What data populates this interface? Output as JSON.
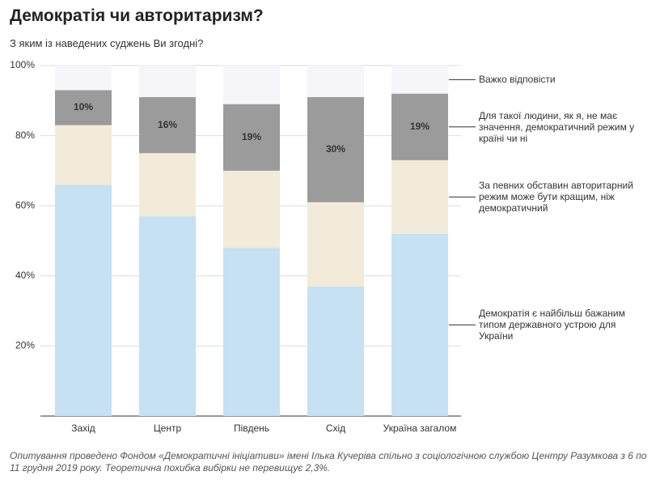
{
  "chart_data": {
    "type": "stacked-bar",
    "title": "Демократія чи авторитаризм?",
    "subtitle": "З яким із наведених суджень Ви згодні?",
    "categories": [
      "Захід",
      "Центр",
      "Південь",
      "Схід",
      "Україна загалом"
    ],
    "series": [
      {
        "name": "Демократія є найбільш бажаним типом державного устрою для України",
        "color": "#c5e1f3",
        "values": [
          66,
          57,
          48,
          37,
          52
        ]
      },
      {
        "name": "За певних обставин авторитарний режим може бути кращим, ніж демократичний",
        "color": "#f2ebd9",
        "values": [
          17,
          18,
          22,
          24,
          21
        ]
      },
      {
        "name": "Для такої людини, як я, не має значення, демократичний режим у країні чи ні",
        "color": "#9b9b9b",
        "values": [
          10,
          16,
          19,
          30,
          19
        ],
        "value_labels": [
          "10%",
          "16%",
          "19%",
          "30%",
          "19%"
        ]
      },
      {
        "name": "Важко відповісти",
        "color": "#f6f6f8",
        "values": [
          7,
          9,
          11,
          9,
          8
        ]
      }
    ],
    "ylim": [
      0,
      100
    ],
    "yticks": [
      {
        "value": 20,
        "label": "20%"
      },
      {
        "value": 40,
        "label": "40%"
      },
      {
        "value": 60,
        "label": "60%"
      },
      {
        "value": 80,
        "label": "80%"
      },
      {
        "value": 100,
        "label": "100%"
      }
    ],
    "grid": true,
    "note": "Опитування проведено Фондом «Демократичні ініціативи» імені Ілька Кучеріва спільно з соціологічною службою Центру Разумкова з 6 по 11 грудня 2019 року. Теоретична похибка вибірки не перевищує 2,3%."
  }
}
